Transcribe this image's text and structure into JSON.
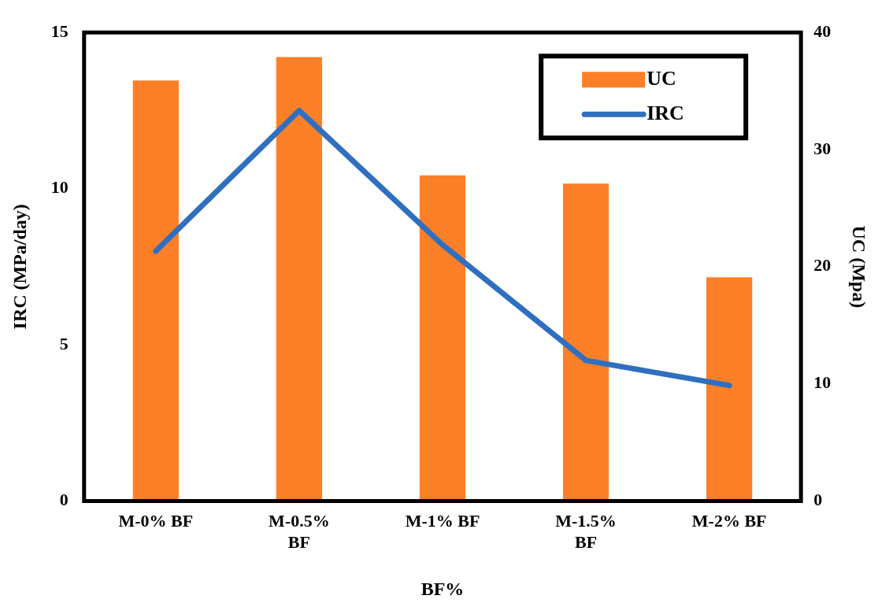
{
  "chart_data": {
    "type": "bar",
    "categories": [
      "M-0% BF",
      "M-0.5% BF",
      "M-1% BF",
      "M-1.5% BF",
      "M-2% BF"
    ],
    "series": [
      {
        "name": "UC",
        "axis": "y2",
        "color": "#fd7f28",
        "values": [
          35.9,
          37.9,
          27.8,
          27.1,
          19.1
        ]
      },
      {
        "name": "IRC",
        "type": "line",
        "axis": "y",
        "color": "#2f6fbf",
        "values": [
          8.0,
          12.5,
          8.2,
          4.5,
          3.7
        ]
      }
    ],
    "xlabel": "BF%",
    "ylabel": "IRC (MPa/day)",
    "y2label": "UC (Mpa)",
    "ylim": [
      0,
      15
    ],
    "yticks": [
      0,
      5,
      10,
      15
    ],
    "y2lim": [
      0,
      40
    ],
    "y2ticks": [
      0,
      10,
      20,
      30,
      40
    ],
    "grid": false,
    "legend": "top right",
    "marker": "none"
  }
}
